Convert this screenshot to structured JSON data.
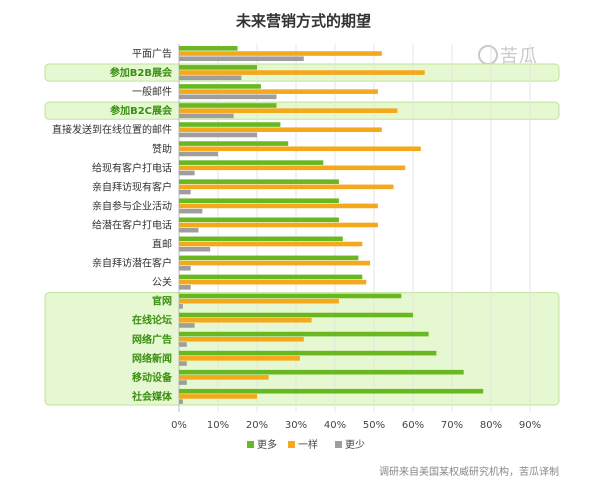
{
  "watermark": "苦瓜",
  "source_note": "调研来自美国某权威研究机构，苦瓜译制",
  "colors": {
    "more": "#6ab820",
    "same": "#f4a81b",
    "less": "#9e9e9e",
    "highlight_bg": "#e6f8d2",
    "highlight_border": "#bfe39a",
    "grid": "#e4e4e4"
  },
  "chart_data": {
    "type": "bar",
    "orientation": "horizontal",
    "title": "未来营销方式的期望",
    "categories": [
      "平面广告",
      "参加B2B展会",
      "一般邮件",
      "参加B2C展会",
      "直接发送到在线位置的邮件",
      "赞助",
      "给现有客户打电话",
      "亲自拜访现有客户",
      "亲自参与企业活动",
      "给潜在客户打电话",
      "直邮",
      "亲自拜访潜在客户",
      "公关",
      "官网",
      "在线论坛",
      "网络广告",
      "网络新闻",
      "移动设备",
      "社会媒体"
    ],
    "highlighted": [
      false,
      true,
      false,
      true,
      false,
      false,
      false,
      false,
      false,
      false,
      false,
      false,
      false,
      true,
      true,
      true,
      true,
      true,
      true
    ],
    "series": [
      {
        "name": "更多",
        "values": [
          15,
          20,
          21,
          25,
          26,
          28,
          37,
          41,
          41,
          41,
          42,
          46,
          47,
          57,
          60,
          64,
          66,
          73,
          78
        ]
      },
      {
        "name": "一样",
        "values": [
          52,
          63,
          51,
          56,
          52,
          62,
          58,
          55,
          51,
          51,
          47,
          49,
          48,
          41,
          34,
          32,
          31,
          23,
          20
        ]
      },
      {
        "name": "更少",
        "values": [
          32,
          16,
          25,
          14,
          20,
          10,
          4,
          3,
          6,
          5,
          8,
          3,
          3,
          1,
          4,
          2,
          2,
          2,
          1
        ]
      }
    ],
    "xticks": [
      "0%",
      "10%",
      "20%",
      "30%",
      "40%",
      "50%",
      "60%",
      "70%",
      "80%",
      "90%"
    ],
    "xlim": [
      0,
      90
    ],
    "grid": true,
    "legend_position": "bottom-center"
  }
}
